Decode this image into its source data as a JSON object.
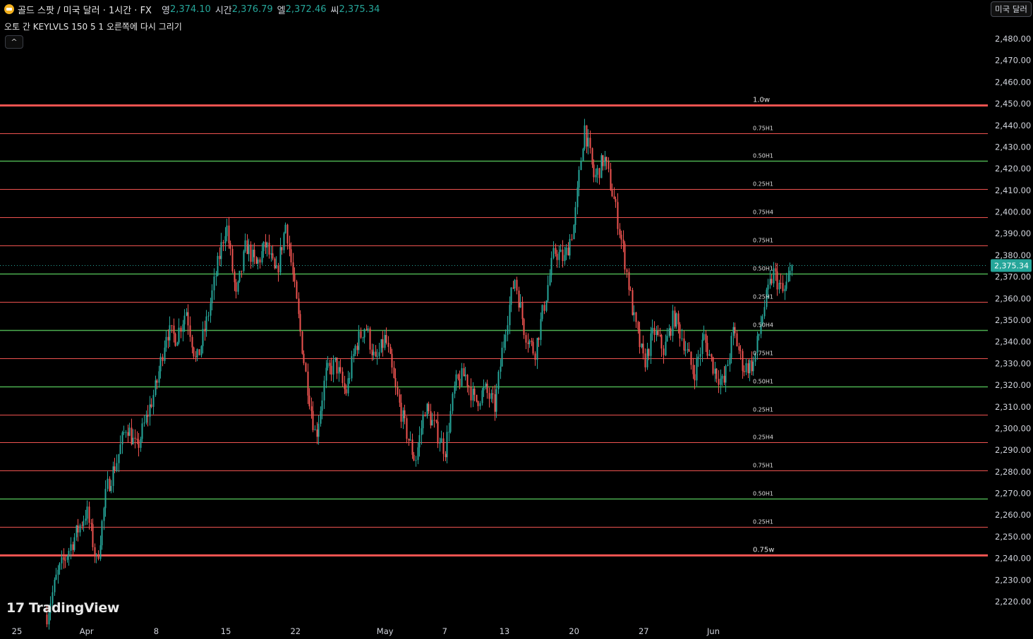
{
  "header": {
    "symbol_title": "골드 스팟 / 미국 달러 · 1시간 · FX",
    "ohlc": [
      {
        "label": "영",
        "value": "2,374.10"
      },
      {
        "label": "시간",
        "value": "2,376.79"
      },
      {
        "label": "엘",
        "value": "2,372.46"
      },
      {
        "label": "씨",
        "value": "2,375.34"
      }
    ]
  },
  "indicator": {
    "label": "오토 간 KEYLVLS 150 5 1 오른쪽에 다시 그리기"
  },
  "collapse_button": {
    "glyph": "^"
  },
  "currency_button": {
    "label": "미국 달러"
  },
  "logo": {
    "mark": "17",
    "text": "TradingView"
  },
  "colors": {
    "up": "#26a69a",
    "down": "#ef5350",
    "level_red": "#ef5350",
    "level_green": "#4caf50",
    "price_tag": "#26a69a"
  },
  "chart_data": {
    "type": "candlestick",
    "y_range": [
      2213,
      2493
    ],
    "y_ticks": [
      2480,
      2470,
      2460,
      2450,
      2440,
      2430,
      2420,
      2410,
      2400,
      2390,
      2380,
      2370,
      2360,
      2350,
      2340,
      2330,
      2320,
      2310,
      2300,
      2290,
      2280,
      2270,
      2260,
      2250,
      2240,
      2230,
      2220
    ],
    "y_tick_labels": [
      "2,480.00",
      "2,470.00",
      "2,460.00",
      "2,450.00",
      "2,440.00",
      "2,430.00",
      "2,420.00",
      "2,410.00",
      "2,400.00",
      "2,390.00",
      "2,380.00",
      "2,370.00",
      "2,360.00",
      "2,350.00",
      "2,340.00",
      "2,330.00",
      "2,320.00",
      "2,310.00",
      "2,300.00",
      "2,290.00",
      "2,280.00",
      "2,270.00",
      "2,260.00",
      "2,250.00",
      "2,240.00",
      "2,230.00",
      "2,220.00"
    ],
    "x_ticks": [
      {
        "label": "25",
        "date": "2024-03-25"
      },
      {
        "label": "Apr",
        "date": "2024-04-01"
      },
      {
        "label": "8",
        "date": "2024-04-08"
      },
      {
        "label": "15",
        "date": "2024-04-15"
      },
      {
        "label": "22",
        "date": "2024-04-22"
      },
      {
        "label": "May",
        "date": "2024-05-01"
      },
      {
        "label": "7",
        "date": "2024-05-07"
      },
      {
        "label": "13",
        "date": "2024-05-13"
      },
      {
        "label": "20",
        "date": "2024-05-20"
      },
      {
        "label": "27",
        "date": "2024-05-27"
      },
      {
        "label": "Jun",
        "date": "2024-06-03"
      }
    ],
    "last_price": 2375.34,
    "last_price_label": "2,375.34",
    "levels": [
      {
        "price": 2449.5,
        "label": "1.0w",
        "color": "red",
        "weight": "heavy"
      },
      {
        "price": 2436.5,
        "label": "0.75H1",
        "color": "red",
        "weight": "thin"
      },
      {
        "price": 2423.5,
        "label": "0.50H1",
        "color": "green",
        "weight": "thin"
      },
      {
        "price": 2410.5,
        "label": "0.25H1",
        "color": "red",
        "weight": "thin"
      },
      {
        "price": 2397.5,
        "label": "0.75H4",
        "color": "red",
        "weight": "thin"
      },
      {
        "price": 2384.5,
        "label": "0.75H1",
        "color": "red",
        "weight": "thin"
      },
      {
        "price": 2371.5,
        "label": "0.50H1",
        "color": "green",
        "weight": "thin"
      },
      {
        "price": 2358.5,
        "label": "0.25H1",
        "color": "red",
        "weight": "thin"
      },
      {
        "price": 2345.5,
        "label": "0.50H4",
        "color": "green",
        "weight": "thin"
      },
      {
        "price": 2332.5,
        "label": "0.75H1",
        "color": "red",
        "weight": "thin"
      },
      {
        "price": 2319.5,
        "label": "0.50H1",
        "color": "green",
        "weight": "thin"
      },
      {
        "price": 2306.5,
        "label": "0.25H1",
        "color": "red",
        "weight": "thin"
      },
      {
        "price": 2293.5,
        "label": "0.25H4",
        "color": "red",
        "weight": "thin"
      },
      {
        "price": 2280.5,
        "label": "0.75H1",
        "color": "red",
        "weight": "thin"
      },
      {
        "price": 2267.5,
        "label": "0.50H1",
        "color": "green",
        "weight": "thin"
      },
      {
        "price": 2254.5,
        "label": "0.25H1",
        "color": "red",
        "weight": "thin"
      },
      {
        "price": 2241.5,
        "label": "0.75w",
        "color": "red",
        "weight": "heavy"
      }
    ],
    "price_path": [
      [
        "2024-03-28",
        2214
      ],
      [
        "2024-03-29",
        2232
      ],
      [
        "2024-04-01",
        2262
      ],
      [
        "2024-04-02",
        2238
      ],
      [
        "2024-04-03",
        2272
      ],
      [
        "2024-04-04",
        2285
      ],
      [
        "2024-04-05",
        2302
      ],
      [
        "2024-04-06",
        2290
      ],
      [
        "2024-04-08",
        2320
      ],
      [
        "2024-04-09",
        2345
      ],
      [
        "2024-04-10",
        2342
      ],
      [
        "2024-04-11",
        2355
      ],
      [
        "2024-04-12",
        2330
      ],
      [
        "2024-04-13",
        2348
      ],
      [
        "2024-04-14",
        2372
      ],
      [
        "2024-04-15",
        2395
      ],
      [
        "2024-04-16",
        2360
      ],
      [
        "2024-04-17",
        2385
      ],
      [
        "2024-04-18",
        2375
      ],
      [
        "2024-04-19",
        2385
      ],
      [
        "2024-04-20",
        2370
      ],
      [
        "2024-04-21",
        2395
      ],
      [
        "2024-04-22",
        2360
      ],
      [
        "2024-04-23",
        2325
      ],
      [
        "2024-04-24",
        2296
      ],
      [
        "2024-04-25",
        2325
      ],
      [
        "2024-04-26",
        2330
      ],
      [
        "2024-04-27",
        2316
      ],
      [
        "2024-04-28",
        2338
      ],
      [
        "2024-04-29",
        2348
      ],
      [
        "2024-04-30",
        2330
      ],
      [
        "2024-05-01",
        2342
      ],
      [
        "2024-05-02",
        2318
      ],
      [
        "2024-05-03",
        2300
      ],
      [
        "2024-05-04",
        2285
      ],
      [
        "2024-05-05",
        2310
      ],
      [
        "2024-05-06",
        2300
      ],
      [
        "2024-05-07",
        2290
      ],
      [
        "2024-05-08",
        2320
      ],
      [
        "2024-05-09",
        2325
      ],
      [
        "2024-05-10",
        2312
      ],
      [
        "2024-05-11",
        2318
      ],
      [
        "2024-05-12",
        2310
      ],
      [
        "2024-05-13",
        2345
      ],
      [
        "2024-05-14",
        2370
      ],
      [
        "2024-05-15",
        2345
      ],
      [
        "2024-05-16",
        2335
      ],
      [
        "2024-05-17",
        2358
      ],
      [
        "2024-05-18",
        2382
      ],
      [
        "2024-05-19",
        2378
      ],
      [
        "2024-05-20",
        2395
      ],
      [
        "2024-05-21",
        2440
      ],
      [
        "2024-05-22",
        2415
      ],
      [
        "2024-05-23",
        2425
      ],
      [
        "2024-05-24",
        2405
      ],
      [
        "2024-05-25",
        2380
      ],
      [
        "2024-05-26",
        2350
      ],
      [
        "2024-05-27",
        2330
      ],
      [
        "2024-05-28",
        2345
      ],
      [
        "2024-05-29",
        2336
      ],
      [
        "2024-05-30",
        2352
      ],
      [
        "2024-05-31",
        2340
      ],
      [
        "2024-06-01",
        2325
      ],
      [
        "2024-06-02",
        2342
      ],
      [
        "2024-06-03",
        2328
      ],
      [
        "2024-06-04",
        2320
      ],
      [
        "2024-06-05",
        2345
      ],
      [
        "2024-06-06",
        2328
      ],
      [
        "2024-06-07",
        2330
      ],
      [
        "2024-06-08",
        2355
      ],
      [
        "2024-06-09",
        2372
      ],
      [
        "2024-06-10",
        2362
      ],
      [
        "2024-06-11",
        2375.34
      ]
    ]
  }
}
